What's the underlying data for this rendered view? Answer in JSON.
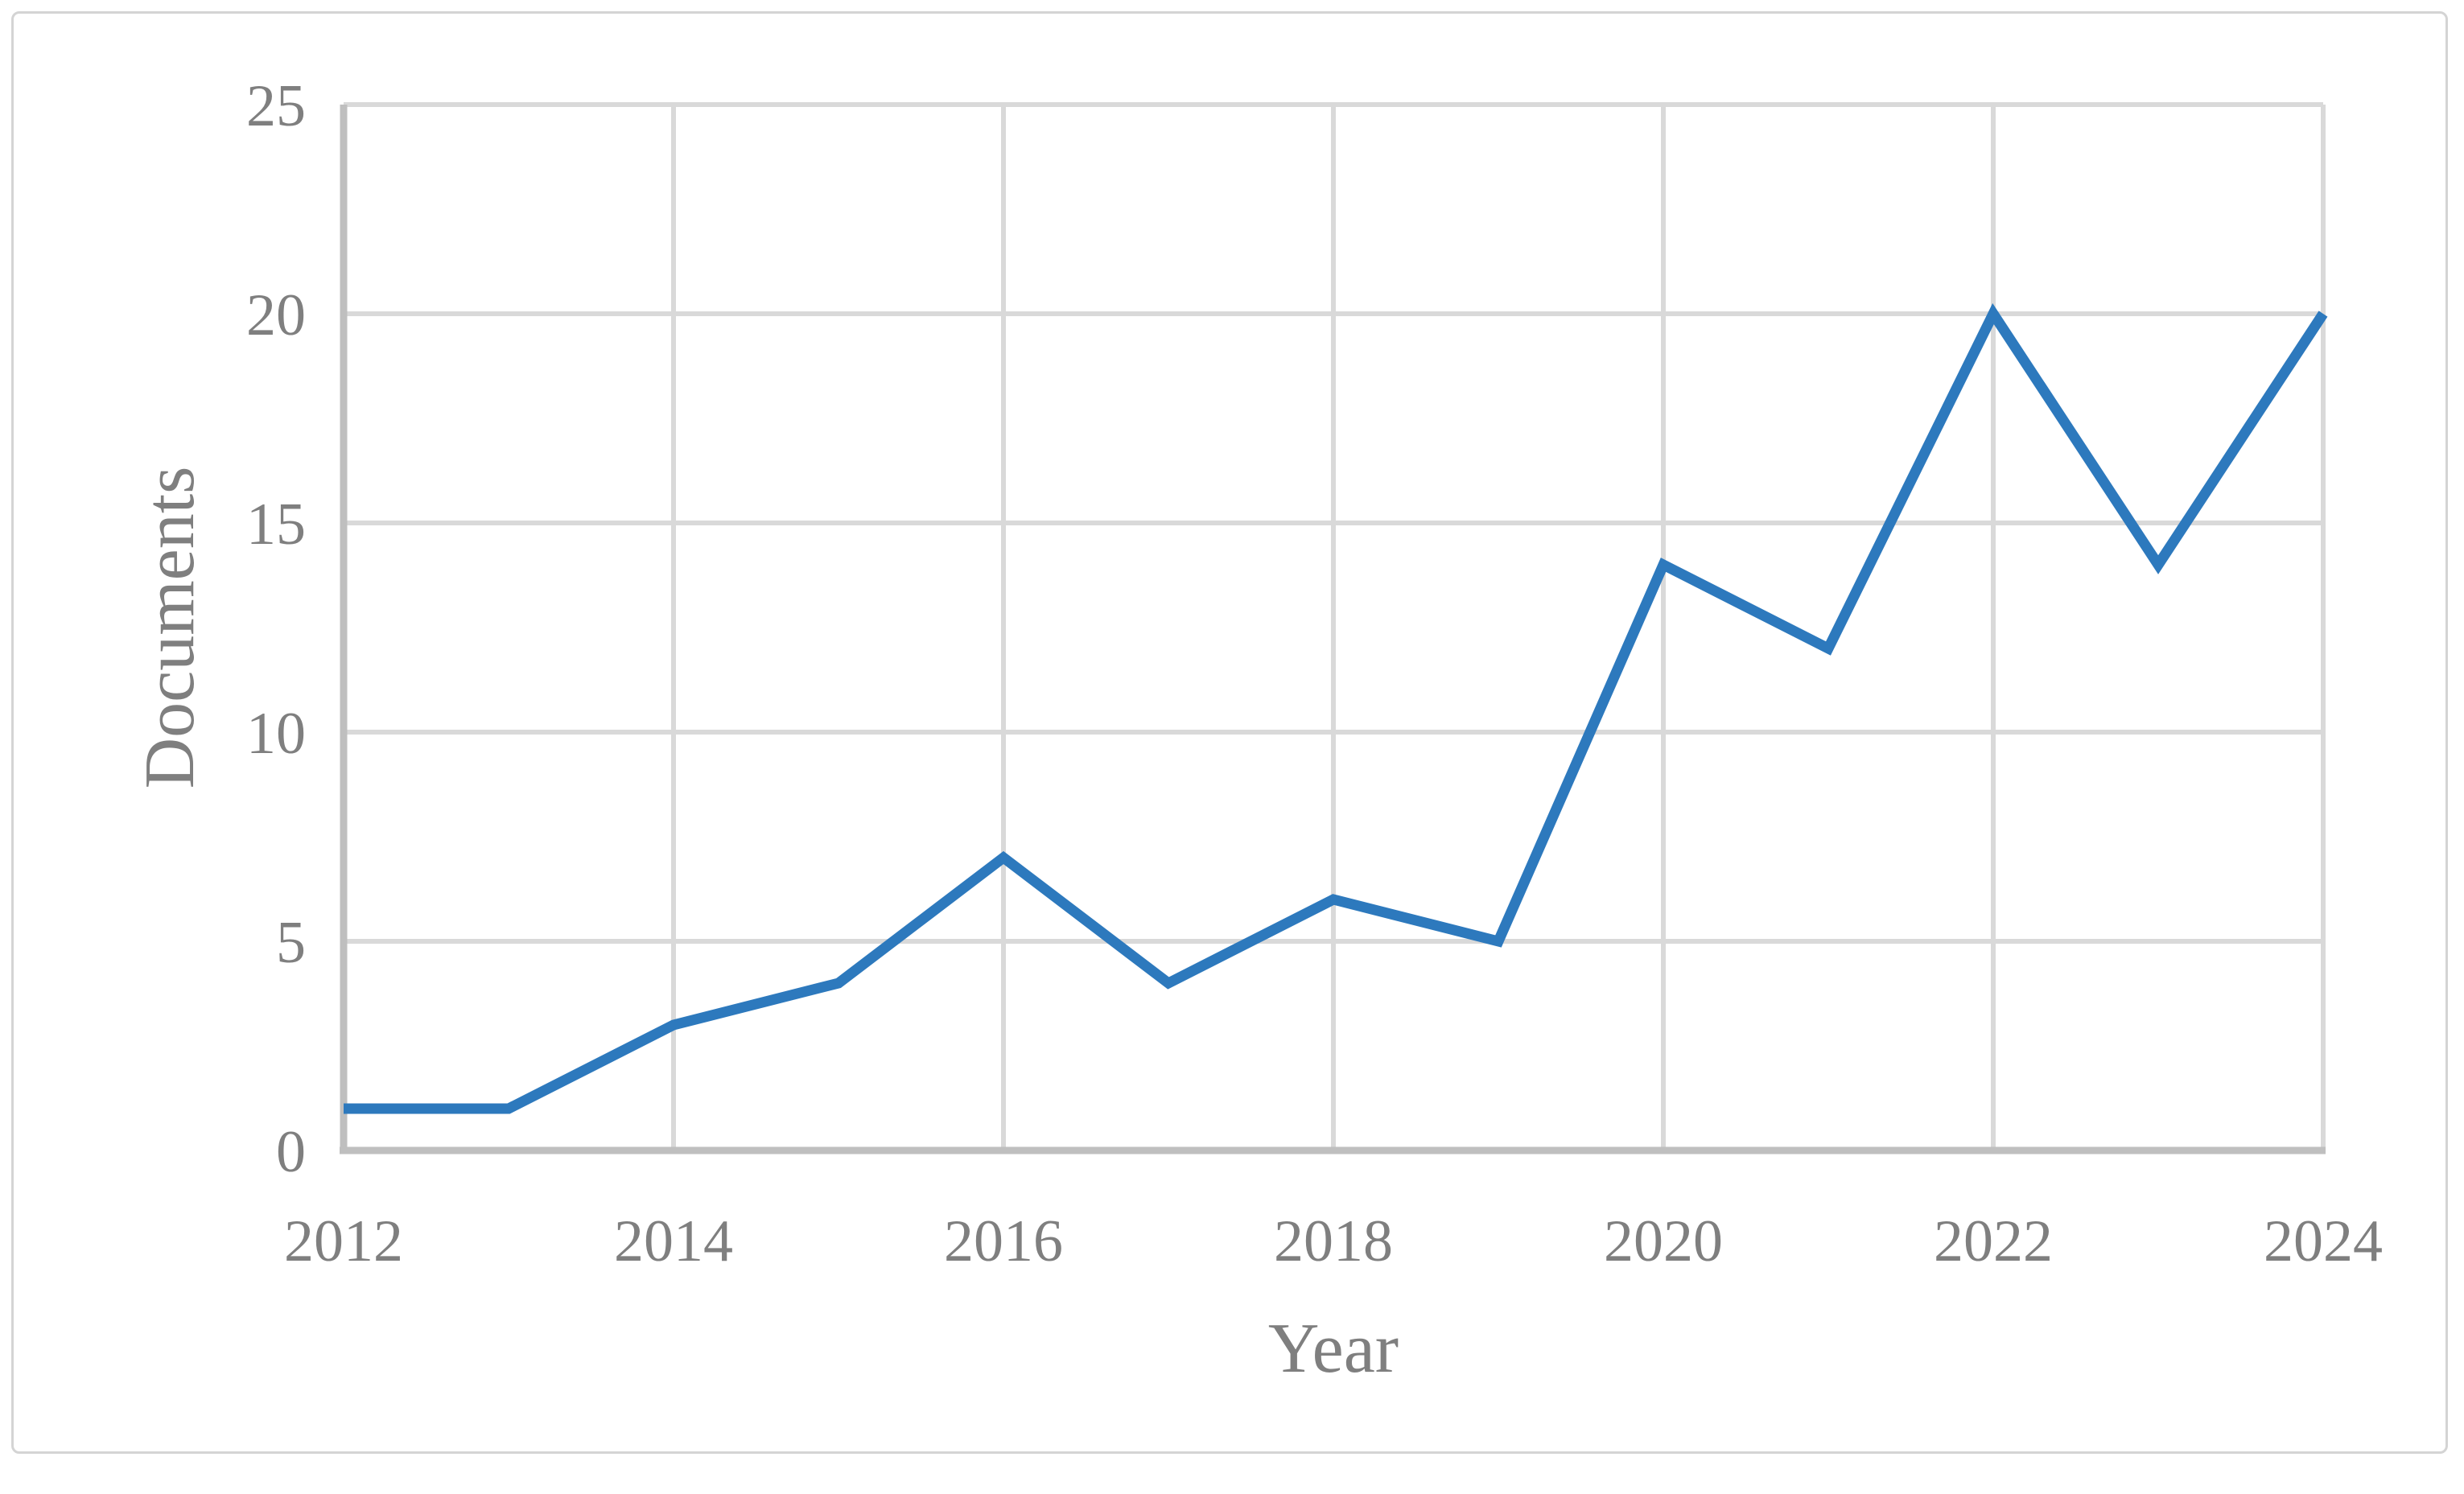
{
  "chart_data": {
    "type": "line",
    "xlabel": "Year",
    "ylabel": "Documents",
    "x": [
      2012,
      2013,
      2014,
      2015,
      2016,
      2017,
      2018,
      2019,
      2020,
      2021,
      2022,
      2023,
      2024
    ],
    "series": [
      {
        "name": "Documents",
        "values": [
          1,
          1,
          3,
          4,
          7,
          4,
          6,
          5,
          14,
          12,
          20,
          14,
          20
        ]
      }
    ],
    "xlim": [
      2012,
      2024
    ],
    "ylim": [
      0,
      25
    ],
    "x_ticks": [
      2012,
      2014,
      2016,
      2018,
      2020,
      2022,
      2024
    ],
    "y_ticks": [
      0,
      5,
      10,
      15,
      20,
      25
    ],
    "grid": "on",
    "legend": "none",
    "colors": {
      "line": "#2d79bd",
      "gridline": "#d9d9d9",
      "axis_line": "#bfbfbf",
      "label": "#7f7f7f",
      "background": "#ffffff",
      "figure_border": "#d4d4d4"
    }
  }
}
